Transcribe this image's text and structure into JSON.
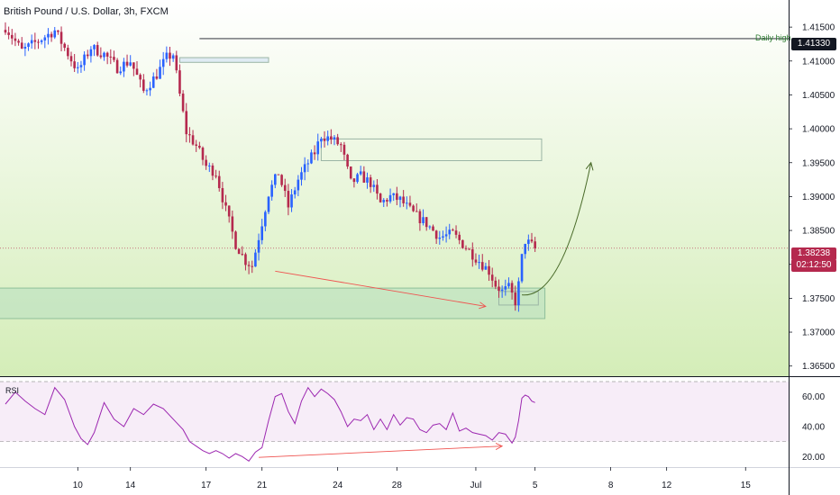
{
  "header": {
    "title": "British Pound / U.S. Dollar, 3h, FXCM"
  },
  "rsi_panel": {
    "label": "RSI"
  },
  "annotations": {
    "daily_high_label": "Daily high",
    "daily_high_value": "1.41330",
    "last_price": "1.38238",
    "countdown": "02:12:50"
  },
  "colors": {
    "up": "#2962ff",
    "down": "#b5294e",
    "rsi": "#9c27b0",
    "projection": "#4a6b2a",
    "divergence": "#ef5350",
    "zone": "#c8e6c9",
    "bg_top": "#ffffff",
    "bg_bottom": "#d4edb8"
  },
  "chart_data": [
    {
      "type": "candlestick",
      "title": "British Pound / U.S. Dollar, 3h, FXCM",
      "price_axis_ticks": [
        "1.41500",
        "1.41000",
        "1.40500",
        "1.40000",
        "1.39500",
        "1.39000",
        "1.38500",
        "1.38000",
        "1.37500",
        "1.37000",
        "1.36500"
      ],
      "time_axis_ticks": [
        "10",
        "14",
        "17",
        "21",
        "24",
        "28",
        "Jul",
        "5",
        "8",
        "12",
        "15"
      ],
      "ylim": [
        1.3635,
        1.419
      ],
      "daily_high": 1.4133,
      "last_price": 1.38238,
      "anchor_closes": [
        [
          0,
          1.415
        ],
        [
          5,
          1.4115
        ],
        [
          10,
          1.413
        ],
        [
          15,
          1.4145
        ],
        [
          22,
          1.4085
        ],
        [
          26,
          1.412
        ],
        [
          30,
          1.411
        ],
        [
          34,
          1.409
        ],
        [
          38,
          1.41
        ],
        [
          42,
          1.4055
        ],
        [
          46,
          1.408
        ],
        [
          49,
          1.4105
        ],
        [
          51,
          1.411
        ],
        [
          53,
          1.405
        ],
        [
          55,
          1.3995
        ],
        [
          58,
          1.3975
        ],
        [
          61,
          1.3945
        ],
        [
          64,
          1.3935
        ],
        [
          67,
          1.388
        ],
        [
          70,
          1.383
        ],
        [
          73,
          1.3805
        ],
        [
          75,
          1.3798
        ],
        [
          77,
          1.384
        ],
        [
          80,
          1.3905
        ],
        [
          83,
          1.3935
        ],
        [
          86,
          1.3885
        ],
        [
          89,
          1.3925
        ],
        [
          92,
          1.395
        ],
        [
          94,
          1.3965
        ],
        [
          96,
          1.399
        ],
        [
          99,
          1.3985
        ],
        [
          102,
          1.3975
        ],
        [
          105,
          1.392
        ],
        [
          108,
          1.393
        ],
        [
          111,
          1.392
        ],
        [
          114,
          1.389
        ],
        [
          117,
          1.39
        ],
        [
          120,
          1.3895
        ],
        [
          124,
          1.3875
        ],
        [
          128,
          1.386
        ],
        [
          132,
          1.384
        ],
        [
          136,
          1.3845
        ],
        [
          139,
          1.383
        ],
        [
          142,
          1.3815
        ],
        [
          145,
          1.38
        ],
        [
          147,
          1.379
        ],
        [
          149,
          1.377
        ],
        [
          151,
          1.376
        ],
        [
          153,
          1.3765
        ],
        [
          155,
          1.3745
        ],
        [
          156,
          1.377
        ],
        [
          157,
          1.381
        ],
        [
          158,
          1.3835
        ],
        [
          160,
          1.3828
        ],
        [
          161,
          1.38238
        ]
      ],
      "zones": [
        {
          "name": "supply-small",
          "from_bar": 53,
          "to_bar": 80,
          "low": 1.4098,
          "high": 1.4105
        },
        {
          "name": "supply-target",
          "from_bar": 96,
          "to_bar": 163,
          "low": 1.3953,
          "high": 1.3985
        },
        {
          "name": "demand-wide",
          "from_bar": -4,
          "to_bar": 164,
          "low": 1.372,
          "high": 1.3765
        },
        {
          "name": "demand-inner",
          "from_bar": 150,
          "to_bar": 162,
          "low": 1.374,
          "high": 1.376
        }
      ]
    },
    {
      "type": "line",
      "title": "RSI",
      "y_ticks": [
        "60.00",
        "40.00",
        "20.00"
      ],
      "ylim": [
        13,
        73
      ],
      "band": [
        30,
        70
      ],
      "values": [
        [
          0,
          55
        ],
        [
          3,
          63
        ],
        [
          6,
          57
        ],
        [
          9,
          52
        ],
        [
          12,
          48
        ],
        [
          15,
          66
        ],
        [
          18,
          58
        ],
        [
          21,
          40
        ],
        [
          23,
          32
        ],
        [
          25,
          28
        ],
        [
          27,
          36
        ],
        [
          30,
          56
        ],
        [
          33,
          45
        ],
        [
          36,
          40
        ],
        [
          39,
          52
        ],
        [
          42,
          48
        ],
        [
          45,
          55
        ],
        [
          48,
          52
        ],
        [
          51,
          45
        ],
        [
          54,
          38
        ],
        [
          56,
          30
        ],
        [
          58,
          27
        ],
        [
          60,
          24
        ],
        [
          62,
          22
        ],
        [
          64,
          24
        ],
        [
          66,
          22
        ],
        [
          68,
          19
        ],
        [
          70,
          22
        ],
        [
          72,
          20
        ],
        [
          74,
          17
        ],
        [
          76,
          23
        ],
        [
          78,
          26
        ],
        [
          80,
          44
        ],
        [
          82,
          60
        ],
        [
          84,
          62
        ],
        [
          86,
          50
        ],
        [
          88,
          42
        ],
        [
          90,
          57
        ],
        [
          92,
          66
        ],
        [
          94,
          60
        ],
        [
          96,
          65
        ],
        [
          98,
          62
        ],
        [
          100,
          58
        ],
        [
          102,
          50
        ],
        [
          104,
          40
        ],
        [
          106,
          45
        ],
        [
          108,
          44
        ],
        [
          110,
          48
        ],
        [
          112,
          38
        ],
        [
          114,
          45
        ],
        [
          116,
          38
        ],
        [
          118,
          48
        ],
        [
          120,
          41
        ],
        [
          122,
          46
        ],
        [
          124,
          45
        ],
        [
          126,
          38
        ],
        [
          128,
          36
        ],
        [
          130,
          41
        ],
        [
          132,
          42
        ],
        [
          134,
          38
        ],
        [
          136,
          49
        ],
        [
          138,
          37
        ],
        [
          140,
          39
        ],
        [
          142,
          36
        ],
        [
          144,
          35
        ],
        [
          146,
          34
        ],
        [
          148,
          31
        ],
        [
          150,
          36
        ],
        [
          152,
          35
        ],
        [
          154,
          29
        ],
        [
          155,
          33
        ],
        [
          156,
          44
        ],
        [
          157,
          59
        ],
        [
          158,
          61
        ],
        [
          159,
          60
        ],
        [
          160,
          57
        ],
        [
          161,
          56
        ]
      ]
    }
  ]
}
